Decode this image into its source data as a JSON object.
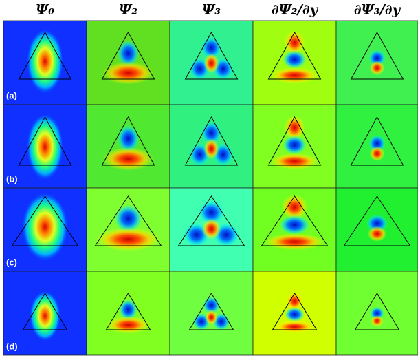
{
  "column_headers": [
    "Ψ₀",
    "Ψ₂",
    "Ψ₃",
    "∂Ψ₂/∂y",
    "∂Ψ₃/∂y"
  ],
  "row_labels": [
    "(a)",
    "(b)",
    "(c)",
    "(d)"
  ]
}
